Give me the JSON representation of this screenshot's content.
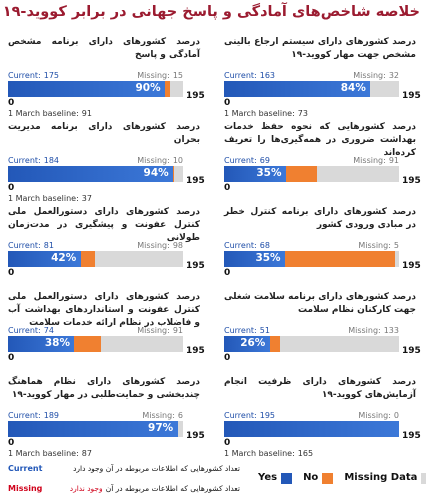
{
  "title": "خلاصه شاخص‌های آمادگی و پاسخ جهانی در برابر کووید-۱۹",
  "labels": {
    "current": "Current:",
    "missing": "Missing:",
    "baseline": "1 March baseline:"
  },
  "scale": {
    "min": 0,
    "max": 195
  },
  "right_column": [
    {
      "text": "درصد کشورهای دارای سیستم ارجاع بالینی مشخص جهت مهار کووید-۱۹",
      "current": 163,
      "missing": 32,
      "percent": "84%",
      "baseline": 73
    },
    {
      "text": "درصد کشورهایی که نحوه حفظ خدمات بهداشت ضروری در همه‌گیری‌ها را تعریف کرده‌اند",
      "current": 69,
      "missing": 91,
      "percent": "35%"
    },
    {
      "text": "درصد کشورهای دارای برنامه کنترل خطر در مبادی ورودی کشور",
      "current": 68,
      "missing": 5,
      "percent": "35%"
    },
    {
      "text": "درصد کشورهای دارای برنامه سلامت شغلی جهت کارکنان نظام سلامت",
      "current": 51,
      "missing": 133,
      "percent": "26%"
    },
    {
      "text": "درصد کشورهای دارای ظرفیت انجام آزمایش‌های کووید-۱۹",
      "current": 195,
      "missing": 0,
      "baseline": 165
    }
  ],
  "left_column": [
    {
      "text": "درصد کشورهای دارای برنامه مشخص آمادگی و پاسخ",
      "current": 175,
      "missing": 15,
      "percent": "90%",
      "baseline": 91
    },
    {
      "text": "درصد کشورهای دارای برنامه مدیریت بحران",
      "current": 184,
      "missing": 10,
      "percent": "94%",
      "baseline": 37
    },
    {
      "text": "درصد کشورهای دارای دستورالعمل ملی کنترل عفونت و پیشگیری در مدت‌زمان طولانی",
      "current": 81,
      "missing": 98,
      "percent": "42%"
    },
    {
      "text": "درصد کشورهای دارای دستورالعمل ملی کنترل عفونت و استانداردهای بهداشت آب و فاضلاب در نظام ارائه خدمات سلامت",
      "current": 74,
      "missing": 91,
      "percent": "38%"
    },
    {
      "text": "درصد کشورهای دارای نظام هماهنگ چندبخشی و حمایت‌طلبی در مهار کووید-۱۹",
      "current": 189,
      "missing": 6,
      "percent": "97%",
      "baseline": 87
    }
  ],
  "legend": [
    {
      "name": "Yes",
      "color": "#2358b8"
    },
    {
      "name": "No",
      "color": "#f08030"
    },
    {
      "name": "Missing Data",
      "color": "#d9d9d9"
    }
  ],
  "footnotes": [
    {
      "key": "Current",
      "text": "تعداد کشورهایی که اطلاعات مربوطه در آن وجود دارد"
    },
    {
      "key": "Missing",
      "text": "تعداد کشورهایی که اطلاعات مربوطه در آن",
      "highlight": "وجود ندارد"
    }
  ]
}
